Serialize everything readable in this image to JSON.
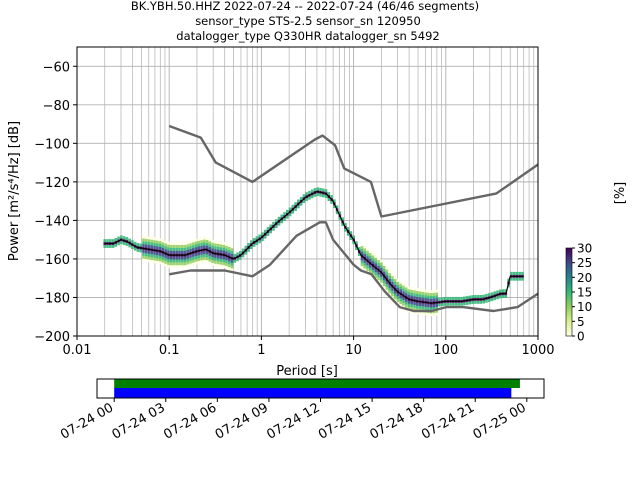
{
  "chart_data": {
    "type": "heatmap",
    "title_lines": [
      "BK.YBH.50.HHZ   2022-07-24 -- 2022-07-24  (46/46 segments)",
      "sensor_type STS-2.5 sensor_sn 120950",
      "datalogger_type Q330HR datalogger_sn 5492"
    ],
    "xlabel": "Period [s]",
    "ylabel": "Power [m²/s⁴/Hz] [dB]",
    "x_scale": "log",
    "xlim": [
      0.01,
      1000
    ],
    "ylim": [
      -200,
      -50
    ],
    "x_ticks": [
      0.01,
      0.1,
      1,
      10,
      100,
      1000
    ],
    "x_tick_labels": [
      "0.01",
      "0.1",
      "1",
      "10",
      "100",
      "1000"
    ],
    "y_ticks": [
      -200,
      -180,
      -160,
      -140,
      -120,
      -100,
      -80,
      -60
    ],
    "y_tick_labels": [
      "−200",
      "−180",
      "−160",
      "−140",
      "−120",
      "−100",
      "−80",
      "−60"
    ],
    "grid": true,
    "noise_model_high": {
      "x": [
        0.1,
        0.22,
        0.32,
        0.8,
        3.8,
        4.6,
        6.3,
        7.9,
        15.4,
        20,
        354.8,
        1000
      ],
      "y": [
        -91,
        -97,
        -110,
        -120,
        -98,
        -96,
        -101,
        -113,
        -120,
        -138,
        -126,
        -111
      ]
    },
    "noise_model_low": {
      "x": [
        0.1,
        0.17,
        0.4,
        0.8,
        1.24,
        2.4,
        4.3,
        5,
        6,
        10,
        12,
        15.6,
        21.9,
        31.6,
        45,
        70,
        101,
        154,
        328,
        600,
        1000
      ],
      "y": [
        -168,
        -166,
        -166,
        -169,
        -163,
        -148,
        -141,
        -141,
        -150,
        -163,
        -166,
        -168,
        -177,
        -185,
        -187,
        -187,
        -185,
        -185,
        -187,
        -185,
        -178
      ]
    },
    "mode": {
      "x": [
        0.02,
        0.025,
        0.03,
        0.035,
        0.045,
        0.06,
        0.08,
        0.1,
        0.15,
        0.2,
        0.25,
        0.3,
        0.4,
        0.5,
        0.6,
        0.8,
        1,
        1.5,
        2,
        3,
        4,
        5,
        6,
        8,
        10,
        12,
        15,
        20,
        25,
        30,
        40,
        50,
        70,
        100,
        150,
        200,
        250,
        300,
        400,
        450,
        500,
        700
      ],
      "y": [
        -152,
        -152,
        -150,
        -151,
        -154,
        -155,
        -156,
        -158,
        -158,
        -156,
        -155,
        -157,
        -158,
        -160,
        -158,
        -152,
        -149,
        -141,
        -136,
        -128,
        -125,
        -126,
        -130,
        -143,
        -150,
        -158,
        -162,
        -167,
        -173,
        -177,
        -181,
        -182,
        -183,
        -182,
        -182,
        -181,
        -181,
        -180,
        -178,
        -178,
        -169,
        -169
      ]
    },
    "colorbar": {
      "label": "[%]",
      "ticks": [
        0,
        5,
        10,
        15,
        20,
        25,
        30
      ],
      "range": [
        0,
        30
      ]
    },
    "timeline": {
      "tick_labels": [
        "07-24 00",
        "07-24 03",
        "07-24 06",
        "07-24 09",
        "07-24 12",
        "07-24 15",
        "07-24 18",
        "07-24 21",
        "07-25 00"
      ],
      "range_hours": [
        -1,
        25
      ],
      "data_bar_hours": [
        0,
        23.6
      ],
      "segments_bar_hours": [
        0,
        23.1
      ],
      "data_bar_color": "#008000",
      "segments_bar_color": "#0000ff"
    },
    "colors": {
      "noise_model": "#666666",
      "mode_line": "#000000"
    }
  }
}
